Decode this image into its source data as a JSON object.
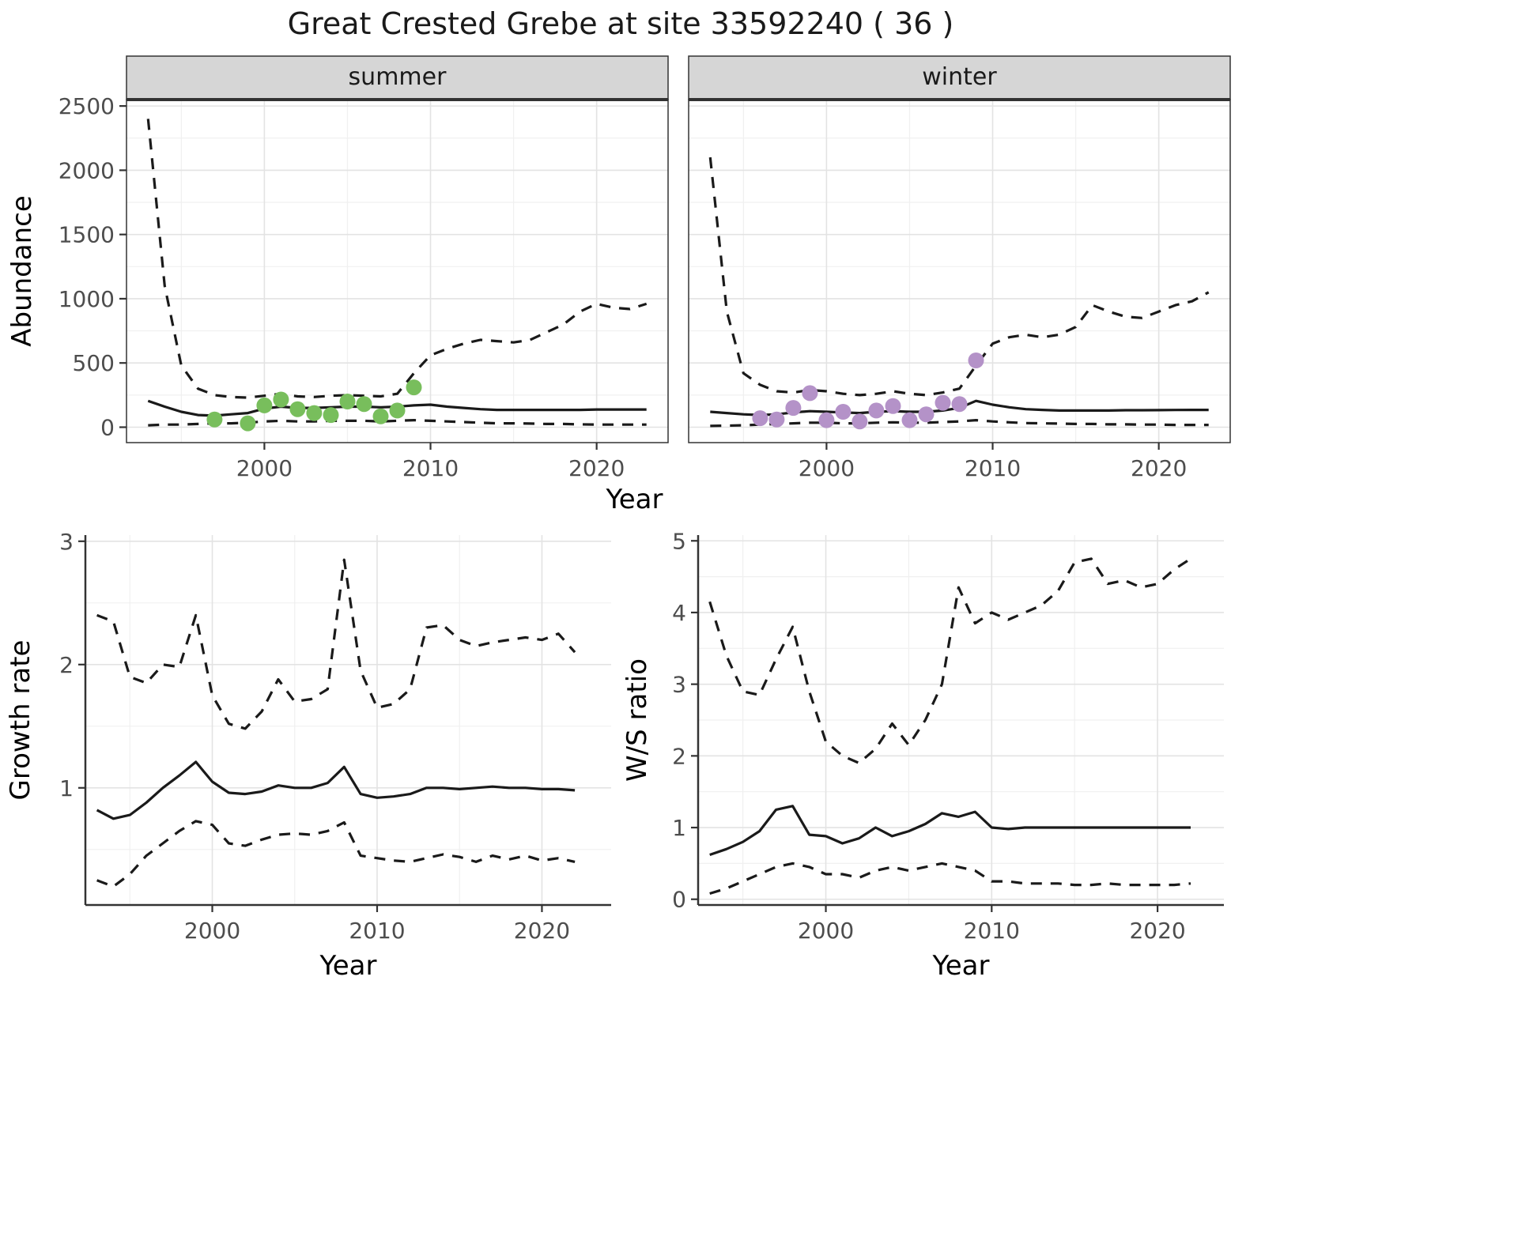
{
  "title": "Great Crested Grebe at site 33592240 ( 36 )",
  "colors": {
    "summer_points": "#78be5c",
    "winter_points": "#b492c8",
    "line": "#1a1a1a",
    "strip_bg": "#d6d6d6",
    "grid_major": "#e3e3e3",
    "grid_minor": "#f0f0f0",
    "axis_text": "#4d4d4d",
    "panel_border": "#333333"
  },
  "chart_data": [
    {
      "type": "line",
      "facet_label": "summer",
      "xlabel": "Year",
      "ylabel": "Abundance",
      "xlim": [
        1991.7,
        2024.3
      ],
      "ylim": [
        -120,
        2550
      ],
      "xticks": [
        2000,
        2010,
        2020
      ],
      "yticks": [
        0,
        500,
        1000,
        1500,
        2000,
        2500
      ],
      "grid": true,
      "legend": "none",
      "x": [
        1993,
        1994,
        1995,
        1996,
        1997,
        1998,
        1999,
        2000,
        2001,
        2002,
        2003,
        2004,
        2005,
        2006,
        2007,
        2008,
        2009,
        2010,
        2011,
        2012,
        2013,
        2014,
        2015,
        2016,
        2017,
        2018,
        2019,
        2020,
        2021,
        2022,
        2023
      ],
      "series": [
        {
          "name": "upper-credible",
          "linetype": "dashed",
          "y": [
            2400,
            1100,
            480,
            300,
            250,
            235,
            230,
            245,
            260,
            240,
            235,
            245,
            250,
            245,
            240,
            260,
            420,
            560,
            610,
            650,
            680,
            670,
            660,
            680,
            740,
            800,
            900,
            960,
            930,
            920,
            960
          ]
        },
        {
          "name": "median",
          "linetype": "solid",
          "y": [
            205,
            160,
            120,
            95,
            90,
            100,
            110,
            145,
            160,
            150,
            150,
            155,
            160,
            160,
            155,
            160,
            170,
            175,
            160,
            150,
            140,
            135,
            135,
            135,
            135,
            135,
            135,
            138,
            138,
            138,
            138
          ]
        },
        {
          "name": "lower-credible",
          "linetype": "dashed",
          "y": [
            15,
            20,
            20,
            25,
            30,
            30,
            35,
            45,
            50,
            45,
            45,
            50,
            50,
            50,
            45,
            50,
            55,
            50,
            45,
            40,
            35,
            30,
            30,
            28,
            25,
            25,
            22,
            20,
            20,
            20,
            20
          ]
        },
        {
          "name": "observed-counts",
          "linetype": "points",
          "color_key": "summer_points",
          "x": [
            1997,
            1999,
            2000,
            2001,
            2002,
            2003,
            2004,
            2005,
            2006,
            2007,
            2008,
            2009
          ],
          "y": [
            60,
            30,
            170,
            215,
            140,
            110,
            95,
            200,
            180,
            85,
            130,
            310
          ]
        }
      ]
    },
    {
      "type": "line",
      "facet_label": "winter",
      "xlabel": "Year",
      "ylabel": "Abundance",
      "xlim": [
        1991.7,
        2024.3
      ],
      "ylim": [
        -120,
        2550
      ],
      "xticks": [
        2000,
        2010,
        2020
      ],
      "yticks": [
        0,
        500,
        1000,
        1500,
        2000,
        2500
      ],
      "grid": true,
      "legend": "none",
      "x": [
        1993,
        1994,
        1995,
        1996,
        1997,
        1998,
        1999,
        2000,
        2001,
        2002,
        2003,
        2004,
        2005,
        2006,
        2007,
        2008,
        2009,
        2010,
        2011,
        2012,
        2013,
        2014,
        2015,
        2016,
        2017,
        2018,
        2019,
        2020,
        2021,
        2022,
        2023
      ],
      "series": [
        {
          "name": "upper-credible",
          "linetype": "dashed",
          "y": [
            2100,
            900,
            420,
            330,
            280,
            270,
            290,
            280,
            260,
            250,
            260,
            280,
            260,
            250,
            270,
            300,
            480,
            650,
            700,
            720,
            700,
            720,
            780,
            950,
            900,
            860,
            850,
            900,
            950,
            980,
            1050
          ]
        },
        {
          "name": "median",
          "linetype": "solid",
          "y": [
            120,
            110,
            100,
            95,
            100,
            115,
            125,
            120,
            115,
            110,
            120,
            125,
            120,
            120,
            130,
            150,
            205,
            175,
            155,
            140,
            135,
            130,
            130,
            130,
            130,
            132,
            132,
            133,
            134,
            135,
            135
          ]
        },
        {
          "name": "lower-credible",
          "linetype": "dashed",
          "y": [
            10,
            12,
            15,
            20,
            25,
            30,
            35,
            35,
            30,
            30,
            35,
            38,
            35,
            35,
            40,
            45,
            55,
            45,
            38,
            32,
            30,
            28,
            25,
            25,
            22,
            22,
            20,
            20,
            18,
            18,
            18
          ]
        },
        {
          "name": "observed-counts",
          "linetype": "points",
          "color_key": "winter_points",
          "x": [
            1996,
            1997,
            1998,
            1999,
            2000,
            2001,
            2002,
            2003,
            2004,
            2005,
            2006,
            2007,
            2008,
            2009
          ],
          "y": [
            70,
            60,
            150,
            265,
            55,
            120,
            45,
            130,
            165,
            55,
            100,
            190,
            180,
            520
          ]
        }
      ]
    },
    {
      "type": "line",
      "facet_label": "",
      "xlabel": "Year",
      "ylabel": "Growth rate",
      "xlim": [
        1992.3,
        2024.2
      ],
      "ylim": [
        0.05,
        3.05
      ],
      "xticks": [
        2000,
        2010,
        2020
      ],
      "yticks": [
        1,
        2,
        3
      ],
      "grid": true,
      "legend": "none",
      "x": [
        1993,
        1994,
        1995,
        1996,
        1997,
        1998,
        1999,
        2000,
        2001,
        2002,
        2003,
        2004,
        2005,
        2006,
        2007,
        2008,
        2009,
        2010,
        2011,
        2012,
        2013,
        2014,
        2015,
        2016,
        2017,
        2018,
        2019,
        2020,
        2021,
        2022
      ],
      "series": [
        {
          "name": "upper-credible",
          "linetype": "dashed",
          "y": [
            2.4,
            2.35,
            1.9,
            1.85,
            2.0,
            1.98,
            2.4,
            1.75,
            1.52,
            1.48,
            1.62,
            1.88,
            1.7,
            1.72,
            1.8,
            2.85,
            1.95,
            1.65,
            1.68,
            1.8,
            2.3,
            2.32,
            2.2,
            2.15,
            2.18,
            2.2,
            2.22,
            2.2,
            2.25,
            2.1
          ]
        },
        {
          "name": "median",
          "linetype": "solid",
          "y": [
            0.82,
            0.75,
            0.78,
            0.88,
            1.0,
            1.1,
            1.21,
            1.05,
            0.96,
            0.95,
            0.97,
            1.02,
            1.0,
            1.0,
            1.04,
            1.17,
            0.95,
            0.92,
            0.93,
            0.95,
            1.0,
            1.0,
            0.99,
            1.0,
            1.01,
            1.0,
            1.0,
            0.99,
            0.99,
            0.98
          ]
        },
        {
          "name": "lower-credible",
          "linetype": "dashed",
          "y": [
            0.25,
            0.2,
            0.3,
            0.45,
            0.55,
            0.65,
            0.73,
            0.7,
            0.55,
            0.53,
            0.58,
            0.62,
            0.63,
            0.62,
            0.65,
            0.72,
            0.45,
            0.43,
            0.41,
            0.4,
            0.43,
            0.46,
            0.44,
            0.4,
            0.45,
            0.42,
            0.45,
            0.41,
            0.43,
            0.4
          ]
        }
      ]
    },
    {
      "type": "line",
      "facet_label": "",
      "xlabel": "Year",
      "ylabel": "W/S ratio",
      "xlim": [
        1992.3,
        2024.0
      ],
      "ylim": [
        -0.08,
        5.08
      ],
      "xticks": [
        2000,
        2010,
        2020
      ],
      "yticks": [
        0,
        1,
        2,
        3,
        4,
        5
      ],
      "grid": true,
      "legend": "none",
      "x": [
        1993,
        1994,
        1995,
        1996,
        1997,
        1998,
        1999,
        2000,
        2001,
        2002,
        2003,
        2004,
        2005,
        2006,
        2007,
        2008,
        2009,
        2010,
        2011,
        2012,
        2013,
        2014,
        2015,
        2016,
        2017,
        2018,
        2019,
        2020,
        2021,
        2022
      ],
      "series": [
        {
          "name": "upper-credible",
          "linetype": "dashed",
          "y": [
            4.15,
            3.4,
            2.9,
            2.85,
            3.35,
            3.8,
            2.9,
            2.2,
            2.0,
            1.9,
            2.1,
            2.45,
            2.15,
            2.5,
            3.0,
            4.35,
            3.85,
            4.0,
            3.9,
            4.0,
            4.1,
            4.3,
            4.7,
            4.75,
            4.4,
            4.45,
            4.35,
            4.4,
            4.6,
            4.75
          ]
        },
        {
          "name": "median",
          "linetype": "solid",
          "y": [
            0.62,
            0.7,
            0.8,
            0.95,
            1.25,
            1.3,
            0.9,
            0.88,
            0.78,
            0.85,
            1.0,
            0.88,
            0.95,
            1.05,
            1.2,
            1.15,
            1.22,
            1.0,
            0.98,
            1.0,
            1.0,
            1.0,
            1.0,
            1.0,
            1.0,
            1.0,
            1.0,
            1.0,
            1.0,
            1.0
          ]
        },
        {
          "name": "lower-credible",
          "linetype": "dashed",
          "y": [
            0.08,
            0.15,
            0.25,
            0.35,
            0.45,
            0.5,
            0.45,
            0.35,
            0.35,
            0.3,
            0.4,
            0.45,
            0.4,
            0.45,
            0.5,
            0.45,
            0.4,
            0.25,
            0.25,
            0.22,
            0.22,
            0.22,
            0.2,
            0.2,
            0.22,
            0.2,
            0.2,
            0.2,
            0.2,
            0.22
          ]
        }
      ]
    }
  ]
}
